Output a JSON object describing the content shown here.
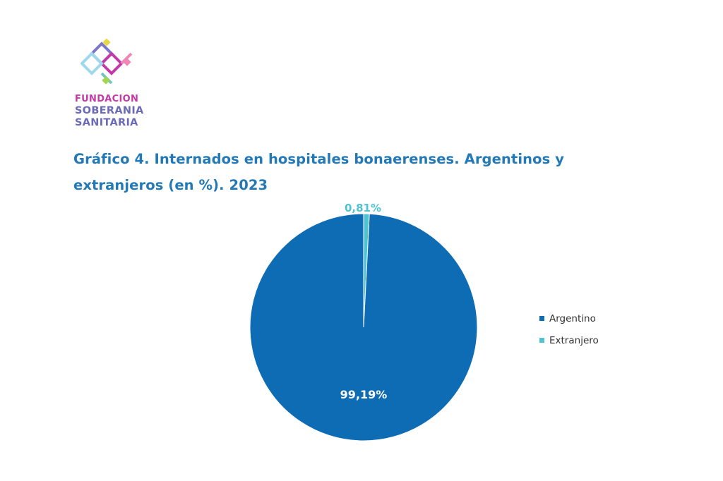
{
  "logo": {
    "line1": "FUNDACION",
    "line2": "SOBERANIA",
    "line3": "SANITARIA",
    "colors": [
      "#9fd8ec",
      "#7b76c8",
      "#c23aa8",
      "#e7d64a",
      "#ef86b6",
      "#6fc7c4"
    ]
  },
  "chart_data": {
    "type": "pie",
    "title": "Gráfico 4. Internados en hospitales bonaerenses. Argentinos y extranjeros (en %). 2023",
    "title_lines": [
      "Gráfico 4. Internados en hospitales bonaerenses. Argentinos y",
      "extranjeros (en %). 2023"
    ],
    "categories": [
      "Argentino",
      "Extranjero"
    ],
    "values": [
      99.19,
      0.81
    ],
    "data_labels": [
      "99,19%",
      "0,81%"
    ],
    "colors": [
      "#0d6cb4",
      "#4ec3d1"
    ],
    "legend_position": "right"
  }
}
